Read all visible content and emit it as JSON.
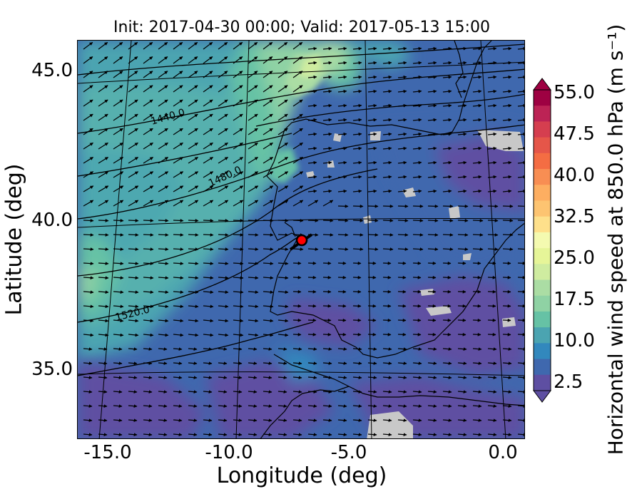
{
  "title": "Init: 2017-04-30 00:00; Valid: 2017-05-13 15:00",
  "axes": {
    "xlabel": "Longitude (deg)",
    "ylabel": "Latitude (deg)",
    "xticks": [
      "-15.0",
      "-10.0",
      "-5.0",
      "0.0"
    ],
    "yticks": [
      "45.0",
      "40.0",
      "35.0"
    ]
  },
  "colorbar": {
    "label": "Horizontal wind speed at 850.0 hPa (m s⁻¹)",
    "ticks": [
      "55.0",
      "47.5",
      "40.0",
      "32.5",
      "25.0",
      "17.5",
      "10.0",
      "2.5"
    ],
    "range": [
      2.5,
      55.0
    ],
    "extend": "both",
    "colors": [
      "#5e4fa2",
      "#3f68ae",
      "#3288bd",
      "#4ba4b1",
      "#66c2a5",
      "#8fd2a4",
      "#abdda4",
      "#cfeca0",
      "#e6f598",
      "#f4fab0",
      "#fee08b",
      "#fdc471",
      "#fdae61",
      "#f88e53",
      "#f46d43",
      "#e55649",
      "#d53e4f",
      "#bc2355",
      "#9e0142"
    ]
  },
  "contours": {
    "labels": [
      "1440.0",
      "1480.0",
      "1520.0"
    ],
    "variable": "geopotential height"
  },
  "marker": {
    "color": "#ff0000",
    "shape": "circle"
  },
  "map": {
    "lon_range": [
      -16.0,
      0.0
    ],
    "lat_range": [
      32.8,
      46.2
    ],
    "missing_color": "#c8c8c8",
    "coastline_color": "#000000"
  }
}
